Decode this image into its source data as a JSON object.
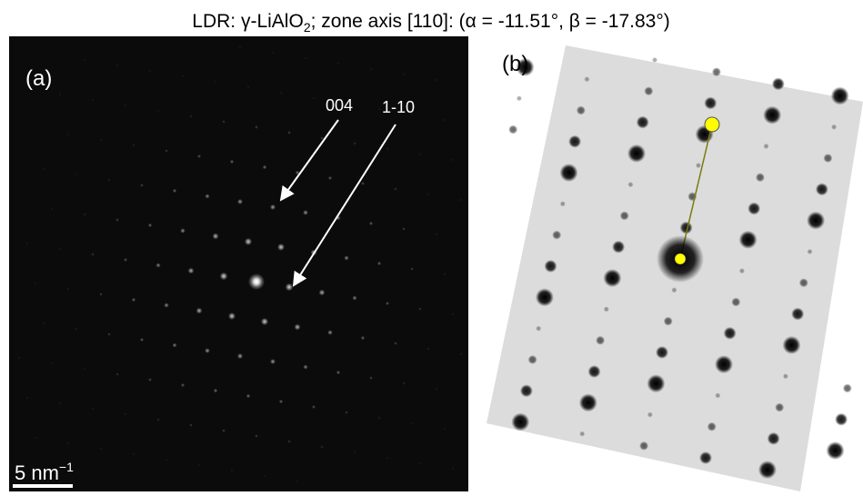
{
  "title": {
    "main": "LDR: γ-LiAlO",
    "subscript": "2",
    "rest": "; zone axis [110]: (α = -11.51°, β = -17.83°)"
  },
  "panel_a": {
    "label": "(a)",
    "arrows": [
      "004",
      "1-10"
    ],
    "scale_bar": {
      "text": "5 nm",
      "superscript": "−1"
    }
  },
  "panel_b": {
    "label": "(b)"
  }
}
